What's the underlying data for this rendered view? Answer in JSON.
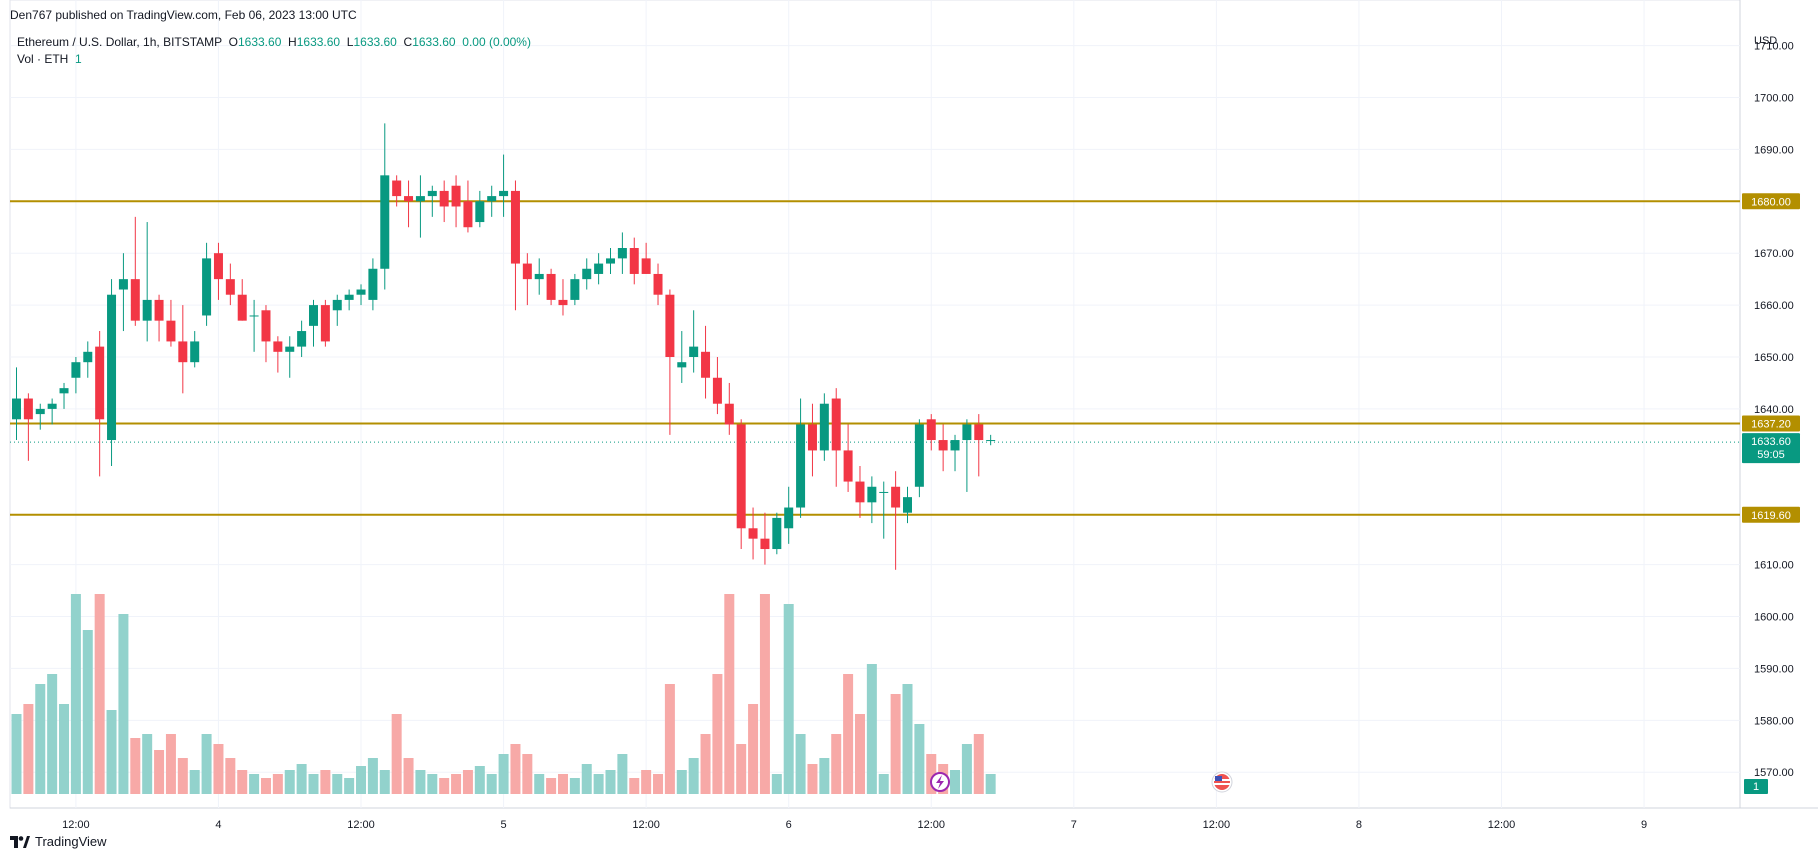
{
  "header": {
    "published": "Den767 published on TradingView.com, Feb 06, 2023 13:00 UTC",
    "symbol": "Ethereum / U.S. Dollar, 1h, BITSTAMP",
    "ohlc": {
      "o_label": "O",
      "o_value": "1633.60",
      "h_label": "H",
      "h_value": "1633.60",
      "l_label": "L",
      "l_value": "1633.60",
      "c_label": "C",
      "c_value": "1633.60",
      "change": "0.00 (0.00%)"
    },
    "volume_label": "Vol · ETH",
    "volume_value": "1"
  },
  "footer": {
    "brand": "TradingView"
  },
  "colors": {
    "up": "#089981",
    "down": "#f23645",
    "level": "#b38f00",
    "up_vol": "#92d2cc",
    "down_vol": "#f7a9a7"
  },
  "chart_data": {
    "type": "candlestick",
    "currency": "USD",
    "ylim": [
      1566,
      1713
    ],
    "y_ticks": [
      "1710.00",
      "1700.00",
      "1690.00",
      "1680.00",
      "1670.00",
      "1660.00",
      "1650.00",
      "1640.00",
      "1610.00",
      "1600.00",
      "1590.00",
      "1580.00",
      "1570.00"
    ],
    "x_ticks": [
      {
        "label": "12:00",
        "index": 5
      },
      {
        "label": "4",
        "index": 17
      },
      {
        "label": "12:00",
        "index": 29
      },
      {
        "label": "5",
        "index": 41
      },
      {
        "label": "12:00",
        "index": 53
      },
      {
        "label": "6",
        "index": 65
      },
      {
        "label": "12:00",
        "index": 77
      },
      {
        "label": "7",
        "index": 89
      },
      {
        "label": "12:00",
        "index": 101
      },
      {
        "label": "8",
        "index": 113
      },
      {
        "label": "12:00",
        "index": 125
      },
      {
        "label": "9",
        "index": 137
      }
    ],
    "levels": [
      {
        "price": 1680.0,
        "label": "1680.00"
      },
      {
        "price": 1637.2,
        "label": "1637.20"
      },
      {
        "price": 1619.6,
        "label": "1619.60"
      }
    ],
    "last_price": {
      "price": 1633.6,
      "label": "1633.60",
      "countdown": "59:05"
    },
    "volume_badge": "1",
    "candles": [
      [
        1638,
        1648,
        1634,
        1642
      ],
      [
        1642,
        1643,
        1630,
        1638
      ],
      [
        1639,
        1641,
        1636,
        1640
      ],
      [
        1640,
        1642,
        1637,
        1641
      ],
      [
        1643,
        1645,
        1640,
        1644
      ],
      [
        1646,
        1650,
        1643,
        1649
      ],
      [
        1649,
        1653,
        1646,
        1651
      ],
      [
        1652,
        1655,
        1627,
        1638
      ],
      [
        1634,
        1665,
        1629,
        1662
      ],
      [
        1663,
        1670,
        1655,
        1665
      ],
      [
        1665,
        1677,
        1656,
        1657
      ],
      [
        1657,
        1676,
        1653,
        1661
      ],
      [
        1661,
        1662,
        1653,
        1657
      ],
      [
        1657,
        1661,
        1652,
        1653
      ],
      [
        1653,
        1660,
        1643,
        1649
      ],
      [
        1649,
        1655,
        1648,
        1653
      ],
      [
        1658,
        1672,
        1656,
        1669
      ],
      [
        1670,
        1672,
        1661,
        1665
      ],
      [
        1665,
        1668,
        1660,
        1662
      ],
      [
        1662,
        1665,
        1657,
        1657
      ],
      [
        1658,
        1661,
        1651,
        1658
      ],
      [
        1659,
        1660,
        1649,
        1653
      ],
      [
        1653,
        1654,
        1647,
        1651
      ],
      [
        1651,
        1654,
        1646,
        1652
      ],
      [
        1652,
        1657,
        1650,
        1655
      ],
      [
        1656,
        1661,
        1652,
        1660
      ],
      [
        1660,
        1661,
        1652,
        1653
      ],
      [
        1659,
        1662,
        1656,
        1661
      ],
      [
        1661,
        1663,
        1659,
        1662
      ],
      [
        1662,
        1664,
        1660,
        1663
      ],
      [
        1661,
        1669,
        1659,
        1667
      ],
      [
        1667,
        1695,
        1663,
        1685
      ],
      [
        1684,
        1685,
        1679,
        1681
      ],
      [
        1681,
        1684,
        1675,
        1680
      ],
      [
        1680,
        1685,
        1673,
        1681
      ],
      [
        1681,
        1683,
        1677,
        1682
      ],
      [
        1682,
        1684,
        1676,
        1679
      ],
      [
        1683,
        1685,
        1675,
        1679
      ],
      [
        1680,
        1684,
        1674,
        1675
      ],
      [
        1676,
        1682,
        1675,
        1680
      ],
      [
        1680,
        1683,
        1677,
        1681
      ],
      [
        1681,
        1689,
        1677,
        1682
      ],
      [
        1682,
        1684,
        1659,
        1668
      ],
      [
        1668,
        1670,
        1660,
        1665
      ],
      [
        1665,
        1669,
        1662,
        1666
      ],
      [
        1666,
        1667,
        1660,
        1661
      ],
      [
        1661,
        1665,
        1658,
        1660
      ],
      [
        1661,
        1666,
        1660,
        1665
      ],
      [
        1665,
        1669,
        1663,
        1667
      ],
      [
        1666,
        1670,
        1664,
        1668
      ],
      [
        1668,
        1671,
        1666,
        1669
      ],
      [
        1669,
        1674,
        1666,
        1671
      ],
      [
        1671,
        1673,
        1664,
        1666
      ],
      [
        1669,
        1672,
        1666,
        1666
      ],
      [
        1666,
        1668,
        1660,
        1662
      ],
      [
        1662,
        1663,
        1635,
        1650
      ],
      [
        1648,
        1655,
        1645,
        1649
      ],
      [
        1650,
        1659,
        1647,
        1652
      ],
      [
        1651,
        1656,
        1642,
        1646
      ],
      [
        1646,
        1650,
        1639,
        1641
      ],
      [
        1641,
        1645,
        1635,
        1637
      ],
      [
        1637,
        1638,
        1613,
        1617
      ],
      [
        1617,
        1621,
        1611,
        1615
      ],
      [
        1615,
        1620,
        1610,
        1613
      ],
      [
        1613,
        1620,
        1612,
        1619
      ],
      [
        1617,
        1625,
        1614,
        1621
      ],
      [
        1621,
        1642,
        1619,
        1637
      ],
      [
        1637,
        1641,
        1627,
        1632
      ],
      [
        1632,
        1643,
        1630,
        1641
      ],
      [
        1642,
        1644,
        1625,
        1632
      ],
      [
        1632,
        1637,
        1624,
        1626
      ],
      [
        1626,
        1629,
        1619,
        1622
      ],
      [
        1622,
        1627,
        1618,
        1625
      ],
      [
        1624,
        1626,
        1615,
        1624
      ],
      [
        1625,
        1628,
        1609,
        1621
      ],
      [
        1620,
        1625,
        1618,
        1623
      ],
      [
        1625,
        1638,
        1623,
        1637
      ],
      [
        1638,
        1639,
        1632,
        1634
      ],
      [
        1634,
        1637,
        1628,
        1632
      ],
      [
        1632,
        1635,
        1628,
        1634
      ],
      [
        1634,
        1638,
        1624,
        1637
      ],
      [
        1637,
        1639,
        1627,
        1634
      ],
      [
        1634,
        1635,
        1633,
        1634
      ]
    ],
    "volumes": [
      40,
      45,
      55,
      60,
      45,
      100,
      82,
      100,
      42,
      90,
      28,
      30,
      22,
      30,
      18,
      12,
      30,
      25,
      18,
      12,
      10,
      8,
      10,
      12,
      15,
      10,
      12,
      10,
      8,
      14,
      18,
      12,
      40,
      18,
      12,
      10,
      8,
      10,
      12,
      14,
      10,
      20,
      25,
      20,
      10,
      8,
      10,
      8,
      15,
      10,
      12,
      20,
      8,
      12,
      10,
      55,
      12,
      18,
      30,
      60,
      100,
      25,
      45,
      100,
      10,
      95,
      30,
      15,
      18,
      30,
      60,
      40,
      65,
      10,
      50,
      55,
      35,
      20,
      15,
      12,
      25,
      30,
      10
    ]
  }
}
